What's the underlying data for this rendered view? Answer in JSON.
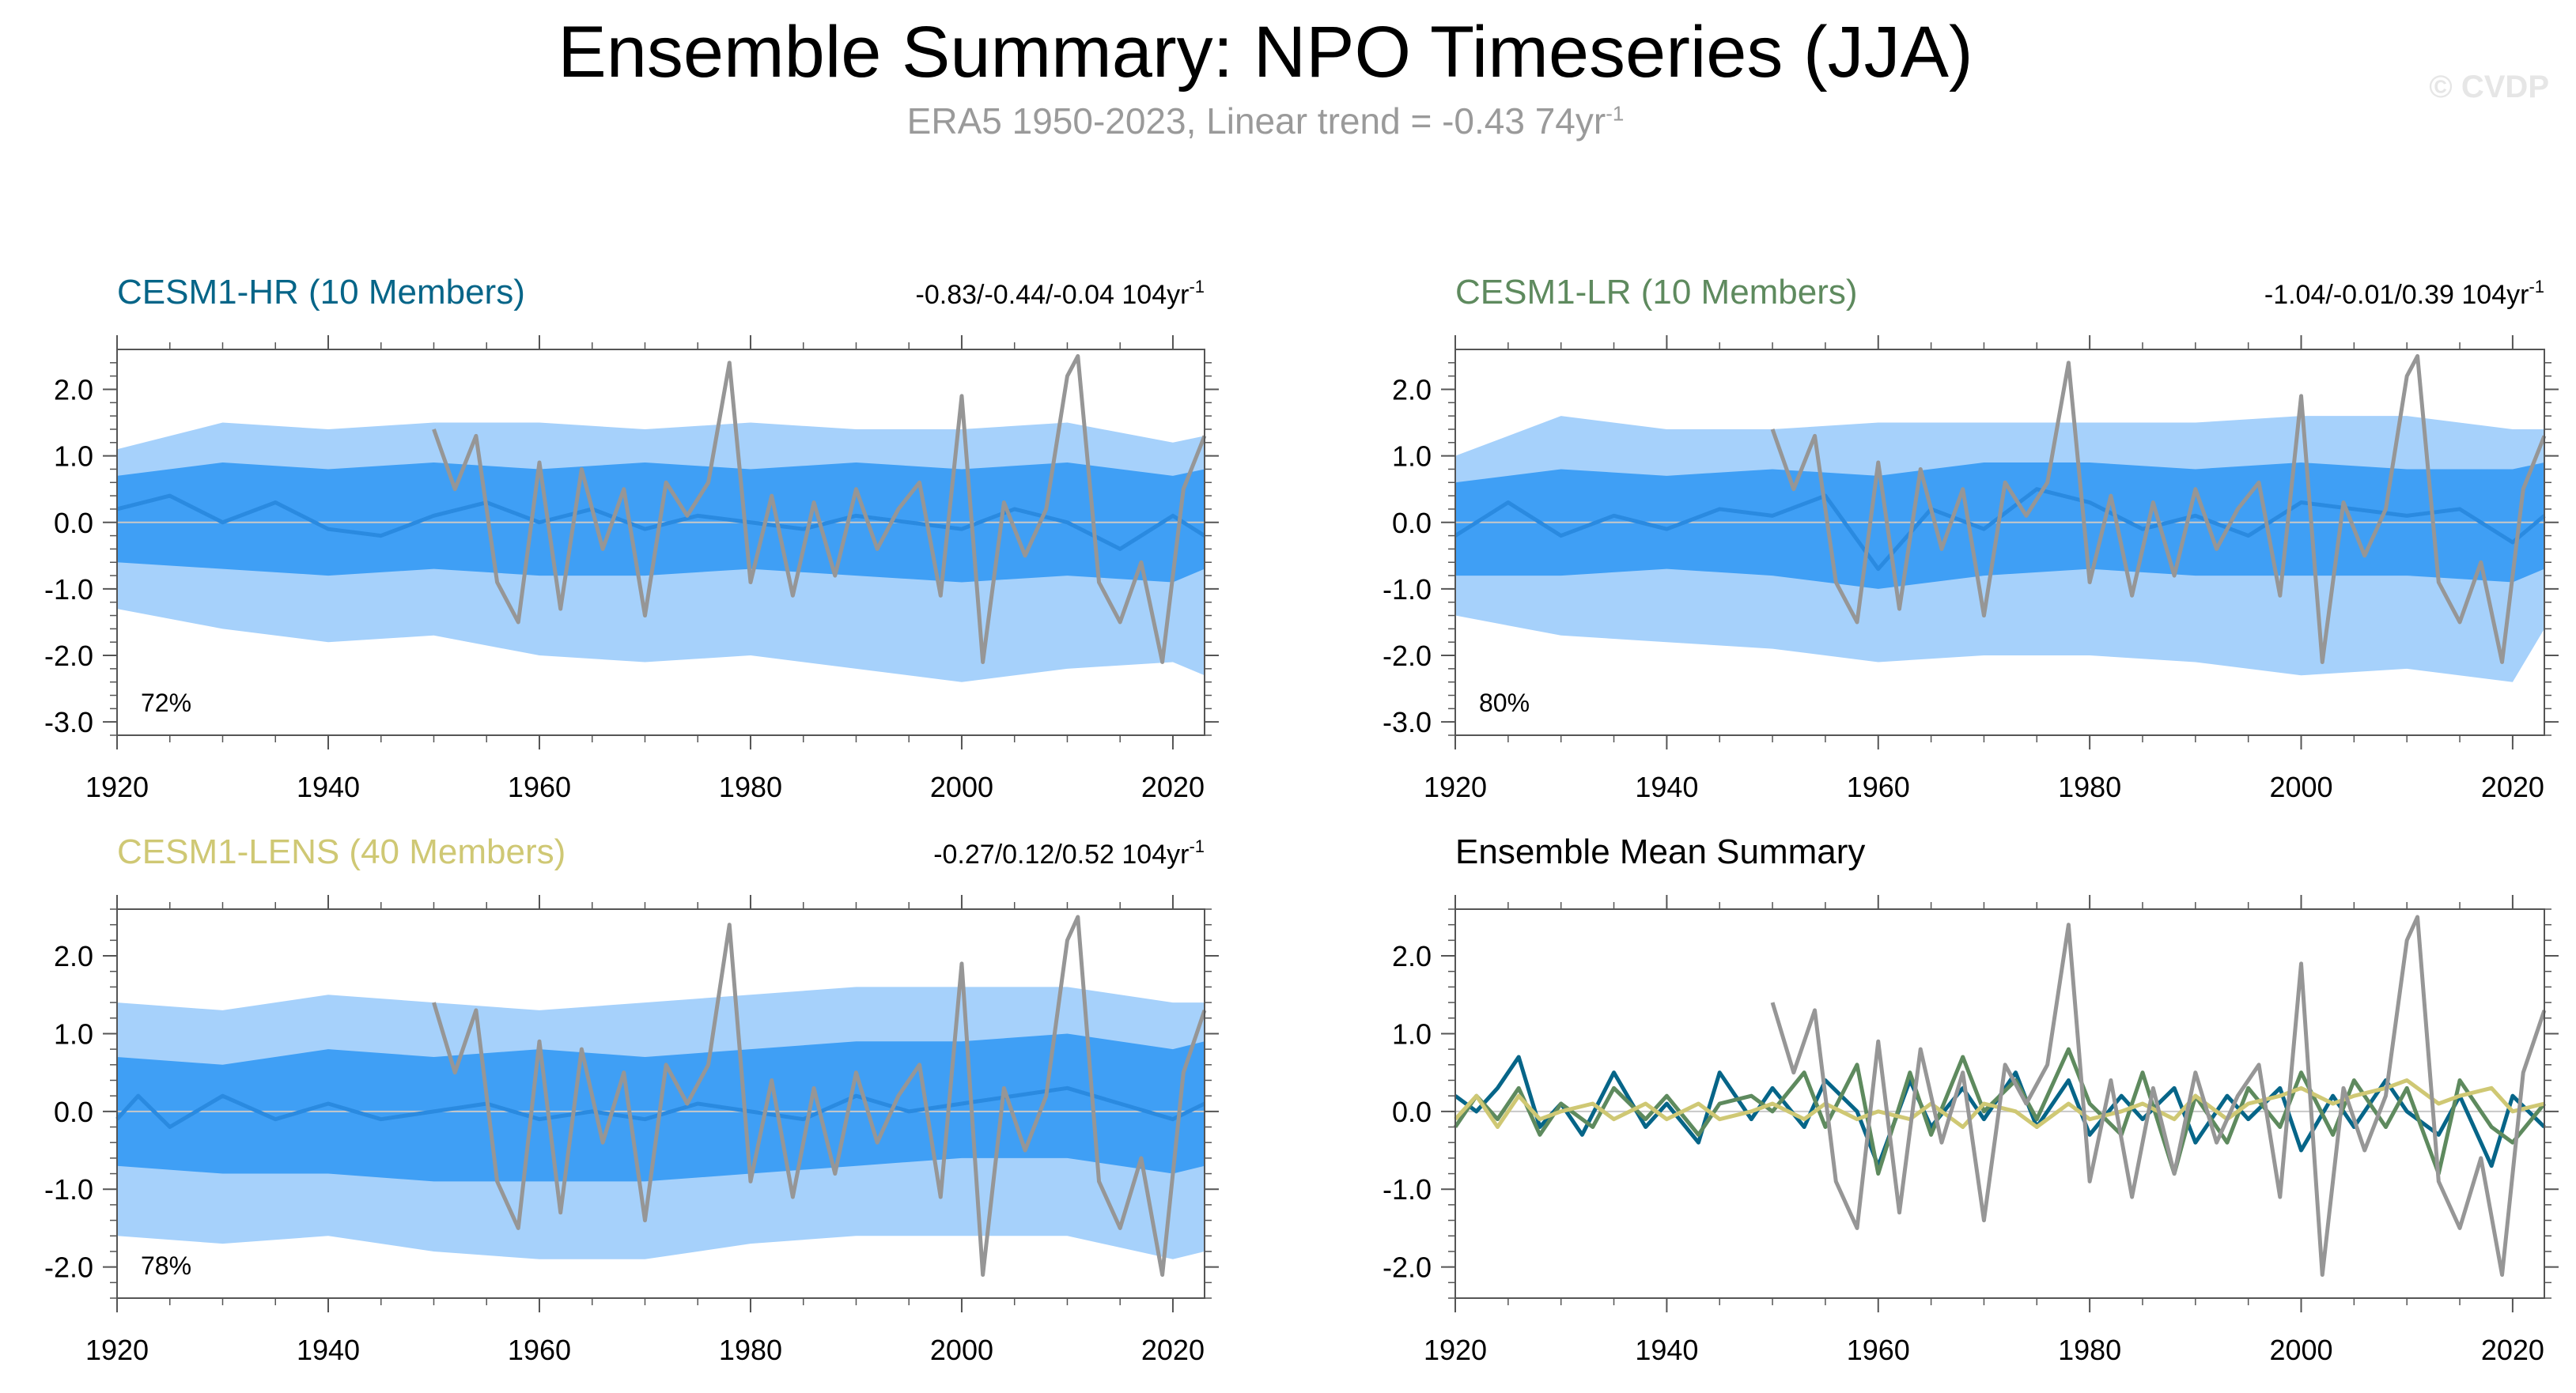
{
  "header": {
    "title": "Ensemble Summary: NPO Timeseries (JJA)",
    "subtitle_main": "ERA5 1950-2023, Linear trend = -0.43 74yr",
    "subtitle_sup": "-1",
    "watermark": "© CVDP"
  },
  "colors": {
    "band_outer": "#a6d1fb",
    "band_inner": "#3f9ff5",
    "ens_mean": "#2a8ae0",
    "obs": "#969696",
    "cesm1_hr": "#066588",
    "cesm1_lr": "#5e8a5e",
    "cesm1_lens": "#cfc874",
    "axis": "#555555"
  },
  "chart_data": [
    {
      "type": "line",
      "panel": "cesm1_hr",
      "title": "CESM1-HR (10 Members)",
      "trend_text": "-0.83/-0.44/-0.04 104yr",
      "trend_sup": "-1",
      "pct_text": "72%",
      "xlim": [
        1920,
        2023
      ],
      "ylim": [
        -3.2,
        2.6
      ],
      "xticks": [
        "1920",
        "1940",
        "1960",
        "1980",
        "2000",
        "2020"
      ],
      "yticks": [
        "2.0",
        "1.0",
        "0.0",
        "-1.0",
        "-2.0",
        "-3.0"
      ],
      "series_desc": "shaded bands: 10–90% (light) and 25–75% (dark) member range; blue line: ensemble mean; gray: ERA5",
      "ens_mean": {
        "x": [
          1920,
          1925,
          1930,
          1935,
          1940,
          1945,
          1950,
          1955,
          1960,
          1965,
          1970,
          1975,
          1980,
          1985,
          1990,
          1995,
          2000,
          2005,
          2010,
          2015,
          2020,
          2023
        ],
        "y": [
          0.2,
          0.4,
          0.0,
          0.3,
          -0.1,
          -0.2,
          0.1,
          0.3,
          0.0,
          0.2,
          -0.1,
          0.1,
          0.0,
          -0.1,
          0.1,
          0.0,
          -0.1,
          0.2,
          0.0,
          -0.4,
          0.1,
          -0.2
        ]
      },
      "inner_band": {
        "x": [
          1920,
          1930,
          1940,
          1950,
          1960,
          1970,
          1980,
          1990,
          2000,
          2010,
          2020,
          2023
        ],
        "lower": [
          -0.6,
          -0.7,
          -0.8,
          -0.7,
          -0.8,
          -0.8,
          -0.7,
          -0.8,
          -0.9,
          -0.8,
          -0.9,
          -0.7
        ],
        "upper": [
          0.7,
          0.9,
          0.8,
          0.9,
          0.8,
          0.9,
          0.8,
          0.9,
          0.8,
          0.9,
          0.7,
          0.8
        ]
      },
      "outer_band": {
        "x": [
          1920,
          1930,
          1940,
          1950,
          1960,
          1970,
          1980,
          1990,
          2000,
          2010,
          2020,
          2023
        ],
        "lower": [
          -1.3,
          -1.6,
          -1.8,
          -1.7,
          -2.0,
          -2.1,
          -2.0,
          -2.2,
          -2.4,
          -2.2,
          -2.1,
          -2.3
        ],
        "upper": [
          1.1,
          1.5,
          1.4,
          1.5,
          1.5,
          1.4,
          1.5,
          1.4,
          1.4,
          1.5,
          1.2,
          1.3
        ]
      },
      "obs": {
        "x": [
          1950,
          1952,
          1954,
          1956,
          1958,
          1960,
          1962,
          1964,
          1966,
          1968,
          1970,
          1972,
          1974,
          1976,
          1978,
          1980,
          1982,
          1984,
          1986,
          1988,
          1990,
          1992,
          1994,
          1996,
          1998,
          2000,
          2002,
          2004,
          2006,
          2008,
          2010,
          2011,
          2013,
          2015,
          2017,
          2019,
          2021,
          2023
        ],
        "y": [
          1.4,
          0.5,
          1.3,
          -0.9,
          -1.5,
          0.9,
          -1.3,
          0.8,
          -0.4,
          0.5,
          -1.4,
          0.6,
          0.1,
          0.6,
          2.4,
          -0.9,
          0.4,
          -1.1,
          0.3,
          -0.8,
          0.5,
          -0.4,
          0.2,
          0.6,
          -1.1,
          1.9,
          -2.1,
          0.3,
          -0.5,
          0.2,
          2.2,
          2.5,
          -0.9,
          -1.5,
          -0.6,
          -2.1,
          0.5,
          1.3
        ]
      }
    },
    {
      "type": "line",
      "panel": "cesm1_lr",
      "title": "CESM1-LR (10 Members)",
      "trend_text": "-1.04/-0.01/0.39 104yr",
      "trend_sup": "-1",
      "pct_text": "80%",
      "xlim": [
        1920,
        2023
      ],
      "ylim": [
        -3.2,
        2.6
      ],
      "xticks": [
        "1920",
        "1940",
        "1960",
        "1980",
        "2000",
        "2020"
      ],
      "yticks": [
        "2.0",
        "1.0",
        "0.0",
        "-1.0",
        "-2.0",
        "-3.0"
      ],
      "ens_mean": {
        "x": [
          1920,
          1925,
          1930,
          1935,
          1940,
          1945,
          1950,
          1955,
          1960,
          1965,
          1970,
          1975,
          1980,
          1985,
          1990,
          1995,
          2000,
          2005,
          2010,
          2015,
          2020,
          2023
        ],
        "y": [
          -0.2,
          0.3,
          -0.2,
          0.1,
          -0.1,
          0.2,
          0.1,
          0.4,
          -0.7,
          0.2,
          -0.1,
          0.5,
          0.3,
          -0.1,
          0.1,
          -0.2,
          0.3,
          0.2,
          0.1,
          0.2,
          -0.3,
          0.1
        ]
      },
      "inner_band": {
        "x": [
          1920,
          1930,
          1940,
          1950,
          1960,
          1970,
          1980,
          1990,
          2000,
          2010,
          2020,
          2023
        ],
        "lower": [
          -0.8,
          -0.8,
          -0.7,
          -0.8,
          -1.0,
          -0.8,
          -0.7,
          -0.8,
          -0.8,
          -0.8,
          -0.9,
          -0.7
        ],
        "upper": [
          0.6,
          0.8,
          0.7,
          0.8,
          0.7,
          0.9,
          0.9,
          0.8,
          0.9,
          0.8,
          0.8,
          0.9
        ]
      },
      "outer_band": {
        "x": [
          1920,
          1930,
          1940,
          1950,
          1960,
          1970,
          1980,
          1990,
          2000,
          2010,
          2020,
          2023
        ],
        "lower": [
          -1.4,
          -1.7,
          -1.8,
          -1.9,
          -2.1,
          -2.0,
          -2.0,
          -2.1,
          -2.3,
          -2.2,
          -2.4,
          -1.6
        ],
        "upper": [
          1.0,
          1.6,
          1.4,
          1.4,
          1.5,
          1.5,
          1.5,
          1.5,
          1.6,
          1.6,
          1.4,
          1.4
        ]
      },
      "obs": {
        "x": [
          1950,
          1952,
          1954,
          1956,
          1958,
          1960,
          1962,
          1964,
          1966,
          1968,
          1970,
          1972,
          1974,
          1976,
          1978,
          1980,
          1982,
          1984,
          1986,
          1988,
          1990,
          1992,
          1994,
          1996,
          1998,
          2000,
          2002,
          2004,
          2006,
          2008,
          2010,
          2011,
          2013,
          2015,
          2017,
          2019,
          2021,
          2023
        ],
        "y": [
          1.4,
          0.5,
          1.3,
          -0.9,
          -1.5,
          0.9,
          -1.3,
          0.8,
          -0.4,
          0.5,
          -1.4,
          0.6,
          0.1,
          0.6,
          2.4,
          -0.9,
          0.4,
          -1.1,
          0.3,
          -0.8,
          0.5,
          -0.4,
          0.2,
          0.6,
          -1.1,
          1.9,
          -2.1,
          0.3,
          -0.5,
          0.2,
          2.2,
          2.5,
          -0.9,
          -1.5,
          -0.6,
          -2.1,
          0.5,
          1.3
        ]
      }
    },
    {
      "type": "line",
      "panel": "cesm1_lens",
      "title": "CESM1-LENS (40 Members)",
      "trend_text": "-0.27/0.12/0.52 104yr",
      "trend_sup": "-1",
      "pct_text": "78%",
      "xlim": [
        1920,
        2023
      ],
      "ylim": [
        -2.4,
        2.6
      ],
      "xticks": [
        "1920",
        "1940",
        "1960",
        "1980",
        "2000",
        "2020"
      ],
      "yticks": [
        "2.0",
        "1.0",
        "0.0",
        "-1.0",
        "-2.0"
      ],
      "ens_mean": {
        "x": [
          1920,
          1922,
          1925,
          1930,
          1935,
          1940,
          1945,
          1950,
          1955,
          1960,
          1965,
          1970,
          1975,
          1980,
          1985,
          1990,
          1995,
          2000,
          2005,
          2010,
          2015,
          2020,
          2023
        ],
        "y": [
          -0.1,
          0.2,
          -0.2,
          0.2,
          -0.1,
          0.1,
          -0.1,
          0.0,
          0.1,
          -0.1,
          0.0,
          -0.1,
          0.1,
          0.0,
          -0.1,
          0.2,
          0.0,
          0.1,
          0.2,
          0.3,
          0.1,
          -0.1,
          0.1
        ]
      },
      "inner_band": {
        "x": [
          1920,
          1930,
          1940,
          1950,
          1960,
          1970,
          1980,
          1990,
          2000,
          2010,
          2020,
          2023
        ],
        "lower": [
          -0.7,
          -0.8,
          -0.8,
          -0.9,
          -0.9,
          -0.9,
          -0.8,
          -0.7,
          -0.6,
          -0.6,
          -0.8,
          -0.7
        ],
        "upper": [
          0.7,
          0.6,
          0.8,
          0.7,
          0.8,
          0.7,
          0.8,
          0.9,
          0.9,
          1.0,
          0.8,
          0.9
        ]
      },
      "outer_band": {
        "x": [
          1920,
          1930,
          1940,
          1950,
          1960,
          1970,
          1980,
          1990,
          2000,
          2010,
          2020,
          2023
        ],
        "lower": [
          -1.6,
          -1.7,
          -1.6,
          -1.8,
          -1.9,
          -1.9,
          -1.7,
          -1.6,
          -1.6,
          -1.6,
          -1.9,
          -1.8
        ],
        "upper": [
          1.4,
          1.3,
          1.5,
          1.4,
          1.3,
          1.4,
          1.5,
          1.6,
          1.6,
          1.6,
          1.4,
          1.4
        ]
      },
      "obs": {
        "x": [
          1950,
          1952,
          1954,
          1956,
          1958,
          1960,
          1962,
          1964,
          1966,
          1968,
          1970,
          1972,
          1974,
          1976,
          1978,
          1980,
          1982,
          1984,
          1986,
          1988,
          1990,
          1992,
          1994,
          1996,
          1998,
          2000,
          2002,
          2004,
          2006,
          2008,
          2010,
          2011,
          2013,
          2015,
          2017,
          2019,
          2021,
          2023
        ],
        "y": [
          1.4,
          0.5,
          1.3,
          -0.9,
          -1.5,
          0.9,
          -1.3,
          0.8,
          -0.4,
          0.5,
          -1.4,
          0.6,
          0.1,
          0.6,
          2.4,
          -0.9,
          0.4,
          -1.1,
          0.3,
          -0.8,
          0.5,
          -0.4,
          0.2,
          0.6,
          -1.1,
          1.9,
          -2.1,
          0.3,
          -0.5,
          0.2,
          2.2,
          2.5,
          -0.9,
          -1.5,
          -0.6,
          -2.1,
          0.5,
          1.3
        ]
      }
    },
    {
      "type": "line",
      "panel": "ensemble_mean_summary",
      "title": "Ensemble Mean Summary",
      "xlim": [
        1920,
        2023
      ],
      "ylim": [
        -2.4,
        2.6
      ],
      "xticks": [
        "1920",
        "1940",
        "1960",
        "1980",
        "2000",
        "2020"
      ],
      "yticks": [
        "2.0",
        "1.0",
        "0.0",
        "-1.0",
        "-2.0"
      ],
      "lines": [
        {
          "color_key": "cesm1_hr",
          "x": [
            1920,
            1922,
            1924,
            1926,
            1928,
            1930,
            1932,
            1935,
            1938,
            1940,
            1943,
            1945,
            1948,
            1950,
            1953,
            1955,
            1958,
            1960,
            1963,
            1965,
            1968,
            1970,
            1973,
            1975,
            1978,
            1980,
            1983,
            1985,
            1988,
            1990,
            1993,
            1995,
            1998,
            2000,
            2003,
            2005,
            2008,
            2010,
            2013,
            2015,
            2018,
            2020,
            2023
          ],
          "y": [
            0.2,
            0.0,
            0.3,
            0.7,
            -0.2,
            0.1,
            -0.3,
            0.5,
            -0.2,
            0.1,
            -0.4,
            0.5,
            -0.1,
            0.3,
            -0.2,
            0.4,
            0.0,
            -0.7,
            0.4,
            -0.2,
            0.3,
            -0.1,
            0.5,
            -0.2,
            0.4,
            -0.3,
            0.2,
            -0.1,
            0.3,
            -0.4,
            0.2,
            -0.1,
            0.3,
            -0.5,
            0.2,
            -0.2,
            0.4,
            0.0,
            -0.3,
            0.2,
            -0.7,
            0.2,
            -0.2
          ]
        },
        {
          "color_key": "cesm1_lr",
          "x": [
            1920,
            1922,
            1924,
            1926,
            1928,
            1930,
            1933,
            1935,
            1938,
            1940,
            1943,
            1945,
            1948,
            1950,
            1953,
            1955,
            1958,
            1960,
            1963,
            1965,
            1968,
            1970,
            1973,
            1975,
            1978,
            1980,
            1983,
            1985,
            1988,
            1990,
            1993,
            1995,
            1998,
            2000,
            2003,
            2005,
            2008,
            2010,
            2013,
            2015,
            2018,
            2020,
            2023
          ],
          "y": [
            -0.2,
            0.2,
            -0.1,
            0.3,
            -0.3,
            0.1,
            -0.2,
            0.3,
            -0.1,
            0.2,
            -0.3,
            0.1,
            0.2,
            0.0,
            0.5,
            -0.2,
            0.6,
            -0.8,
            0.5,
            -0.3,
            0.7,
            0.0,
            0.4,
            -0.1,
            0.8,
            0.1,
            -0.3,
            0.5,
            -0.8,
            0.2,
            -0.4,
            0.3,
            -0.2,
            0.5,
            -0.3,
            0.4,
            -0.2,
            0.3,
            -0.8,
            0.4,
            -0.2,
            -0.4,
            0.1
          ]
        },
        {
          "color_key": "cesm1_lens",
          "x": [
            1920,
            1922,
            1924,
            1926,
            1928,
            1930,
            1933,
            1935,
            1938,
            1940,
            1943,
            1945,
            1948,
            1950,
            1953,
            1955,
            1958,
            1960,
            1963,
            1965,
            1968,
            1970,
            1973,
            1975,
            1978,
            1980,
            1983,
            1985,
            1988,
            1990,
            1993,
            1995,
            1998,
            2000,
            2003,
            2005,
            2008,
            2010,
            2013,
            2015,
            2018,
            2020,
            2023
          ],
          "y": [
            -0.1,
            0.2,
            -0.2,
            0.2,
            -0.1,
            0.0,
            0.1,
            -0.1,
            0.1,
            -0.1,
            0.1,
            -0.1,
            0.0,
            0.1,
            -0.1,
            0.1,
            -0.1,
            0.0,
            -0.1,
            0.1,
            -0.2,
            0.1,
            0.0,
            -0.2,
            0.1,
            -0.1,
            0.0,
            0.1,
            -0.1,
            0.2,
            -0.1,
            0.1,
            0.2,
            0.3,
            0.1,
            0.2,
            0.3,
            0.4,
            0.1,
            0.2,
            0.3,
            0.0,
            0.1
          ]
        },
        {
          "color_key": "obs",
          "x": [
            1950,
            1952,
            1954,
            1956,
            1958,
            1960,
            1962,
            1964,
            1966,
            1968,
            1970,
            1972,
            1974,
            1976,
            1978,
            1980,
            1982,
            1984,
            1986,
            1988,
            1990,
            1992,
            1994,
            1996,
            1998,
            2000,
            2002,
            2004,
            2006,
            2008,
            2010,
            2011,
            2013,
            2015,
            2017,
            2019,
            2021,
            2023
          ],
          "y": [
            1.4,
            0.5,
            1.3,
            -0.9,
            -1.5,
            0.9,
            -1.3,
            0.8,
            -0.4,
            0.5,
            -1.4,
            0.6,
            0.1,
            0.6,
            2.4,
            -0.9,
            0.4,
            -1.1,
            0.3,
            -0.8,
            0.5,
            -0.4,
            0.2,
            0.6,
            -1.1,
            1.9,
            -2.1,
            0.3,
            -0.5,
            0.2,
            2.2,
            2.5,
            -0.9,
            -1.5,
            -0.6,
            -2.1,
            0.5,
            1.3
          ]
        }
      ]
    }
  ]
}
